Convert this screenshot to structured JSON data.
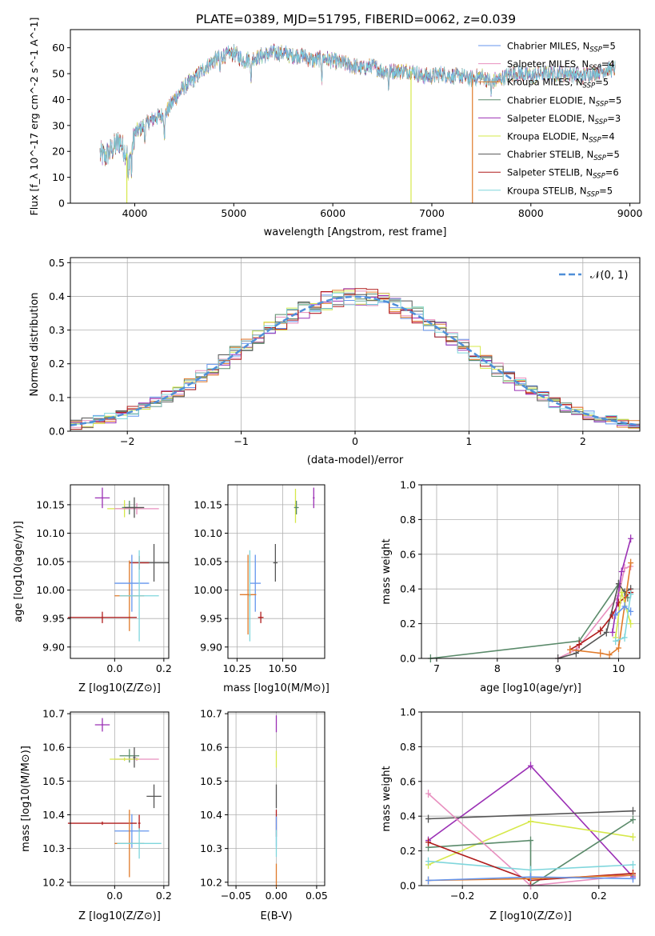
{
  "figure_title": "PLATE=0389, MJD=51795, FIBERID=0062, z=0.039",
  "colors": {
    "Chabrier MILES": "#6495ed",
    "Salpeter MILES": "#e88fbf",
    "Kroupa MILES": "#e07a2a",
    "Chabrier ELODIE": "#5a8a6a",
    "Salpeter ELODIE": "#9b30b5",
    "Kroupa ELODIE": "#d6e84a",
    "Chabrier STELIB": "#555555",
    "Salpeter STELIB": "#b01c1c",
    "Kroupa STELIB": "#7fd6dc",
    "gaussian": "#4f8fd8",
    "grid": "#b0b0b0"
  },
  "chart_data": [
    {
      "id": "spectrum",
      "type": "line",
      "title": "PLATE=0389, MJD=51795, FIBERID=0062, z=0.039",
      "xlabel": "wavelength [Angstrom, rest frame]",
      "ylabel": "Flux [f_λ 10^-17 erg cm^-2 s^-1 A^-1]",
      "xlim": [
        3350,
        9100
      ],
      "ylim": [
        0,
        67
      ],
      "xticks": [
        "4000",
        "5000",
        "6000",
        "7000",
        "8000",
        "9000"
      ],
      "yticks": [
        "0",
        "10",
        "20",
        "30",
        "40",
        "50",
        "60"
      ],
      "grid": false,
      "legend_position": "top-right",
      "legend": [
        {
          "name": "Chabrier MILES",
          "label": "Chabrier MILES, N",
          "sub": "SSP",
          "tail": "=5"
        },
        {
          "name": "Salpeter MILES",
          "label": "Salpeter MILES, N",
          "sub": "SSP",
          "tail": "=4"
        },
        {
          "name": "Kroupa MILES",
          "label": "Kroupa MILES, N",
          "sub": "SSP",
          "tail": "=5"
        },
        {
          "name": "Chabrier ELODIE",
          "label": "Chabrier ELODIE, N",
          "sub": "SSP",
          "tail": "=5"
        },
        {
          "name": "Salpeter ELODIE",
          "label": "Salpeter ELODIE, N",
          "sub": "SSP",
          "tail": "=3"
        },
        {
          "name": "Kroupa ELODIE",
          "label": "Kroupa ELODIE, N",
          "sub": "SSP",
          "tail": "=4"
        },
        {
          "name": "Chabrier STELIB",
          "label": "Chabrier STELIB, N",
          "sub": "SSP",
          "tail": "=5"
        },
        {
          "name": "Salpeter STELIB",
          "label": "Salpeter STELIB, N",
          "sub": "SSP",
          "tail": "=6"
        },
        {
          "name": "Kroupa STELIB",
          "label": "Kroupa STELIB, N",
          "sub": "SSP",
          "tail": "=5"
        }
      ],
      "continuum": {
        "x": [
          3650,
          3700,
          3750,
          3800,
          3850,
          3900,
          3950,
          4000,
          4100,
          4200,
          4300,
          4400,
          4500,
          4600,
          4700,
          4800,
          4900,
          5000,
          5100,
          5200,
          5300,
          5400,
          5500,
          5600,
          5700,
          5800,
          5900,
          6000,
          6100,
          6200,
          6300,
          6400,
          6500,
          6600,
          6700,
          6800,
          6900,
          7000,
          7100,
          7200,
          7300,
          7400,
          7500,
          7600,
          7700,
          7800,
          7900,
          8000,
          8100,
          8200,
          8300,
          8400,
          8500,
          8600,
          8700,
          8850
        ],
        "y": [
          19,
          18,
          20,
          22,
          24,
          20,
          18,
          27,
          30,
          33,
          34,
          40,
          45,
          48,
          52,
          55,
          57,
          58,
          55,
          56,
          57,
          58,
          58,
          57,
          57,
          55,
          56,
          55,
          54,
          53,
          52,
          53,
          51,
          51,
          51,
          51,
          49,
          49,
          50,
          49,
          49,
          48,
          49,
          47,
          48,
          50,
          50,
          49,
          50,
          50,
          50,
          50,
          49,
          50,
          51,
          52
        ]
      },
      "absorption_dips": [
        {
          "x": 3934,
          "depth": 12
        },
        {
          "x": 3968,
          "depth": 10
        },
        {
          "x": 4101,
          "depth": 6
        },
        {
          "x": 4300,
          "depth": 8
        },
        {
          "x": 4861,
          "depth": 6
        },
        {
          "x": 5175,
          "depth": 10
        },
        {
          "x": 5890,
          "depth": 8
        },
        {
          "x": 6563,
          "depth": 6
        },
        {
          "x": 7600,
          "depth": 5
        }
      ],
      "spikes": [
        {
          "series": "Kroupa ELODIE",
          "x": 3920
        },
        {
          "series": "Kroupa ELODIE",
          "x": 6790
        },
        {
          "series": "Kroupa MILES",
          "x": 7410
        }
      ]
    },
    {
      "id": "residuals",
      "type": "bar",
      "xlabel": "(data-model)/error",
      "ylabel": "Normed distribution",
      "xlim": [
        -2.5,
        2.5
      ],
      "ylim": [
        0,
        0.515
      ],
      "xticks": [
        "−2",
        "−1",
        "0",
        "1",
        "2"
      ],
      "yticks": [
        "0.0",
        "0.1",
        "0.2",
        "0.3",
        "0.4",
        "0.5"
      ],
      "grid": true,
      "legend_position": "top-right",
      "gaussian_label": "𝒩(0, 1)",
      "bin_width": 0.1
    },
    {
      "id": "age-vs-Z",
      "type": "scatter",
      "xlabel": "Z [log10(Z/Z⊙)]",
      "ylabel": "age  [log10(age/yr)]",
      "xlim": [
        -0.18,
        0.22
      ],
      "ylim": [
        9.88,
        10.185
      ],
      "xticks": [
        "0.0",
        "0.2"
      ],
      "yticks": [
        "9.90",
        "9.95",
        "10.00",
        "10.05",
        "10.10",
        "10.15"
      ],
      "grid": true,
      "points": [
        {
          "series": "Salpeter ELODIE",
          "x": -0.05,
          "y": 10.162,
          "xerr": 0.03,
          "yerr": 0.018
        },
        {
          "series": "Kroupa ELODIE",
          "x": 0.04,
          "y": 10.143,
          "xerr": 0.07,
          "yerr": 0.015
        },
        {
          "series": "Chabrier ELODIE",
          "x": 0.06,
          "y": 10.145,
          "xerr": 0.03,
          "yerr": 0.012
        },
        {
          "series": "Salpeter MILES",
          "x": 0.09,
          "y": 10.143,
          "xerr": 0.09,
          "yerr": 0.01
        },
        {
          "series": "Chabrier STELIB",
          "x": 0.08,
          "y": 10.145,
          "xerr": 0.04,
          "yerr": 0.018
        },
        {
          "series": "Chabrier STELIB",
          "x": 0.16,
          "y": 10.048,
          "xerr": 0.06,
          "yerr": 0.033
        },
        {
          "series": "Salpeter STELIB",
          "x": 0.1,
          "y": 10.048,
          "xerr": 0.04,
          "yerr": 0.012
        },
        {
          "series": "Kroupa MILES",
          "x": 0.06,
          "y": 9.99,
          "xerr": 0.06,
          "yerr": 0.062
        },
        {
          "series": "Chabrier MILES",
          "x": 0.07,
          "y": 10.012,
          "xerr": 0.07,
          "yerr": 0.05
        },
        {
          "series": "Kroupa STELIB",
          "x": 0.1,
          "y": 9.99,
          "xerr": 0.08,
          "yerr": 0.08
        },
        {
          "series": "Salpeter STELIB",
          "x": -0.05,
          "y": 9.952,
          "xerr": 0.14,
          "yerr": 0.01
        }
      ]
    },
    {
      "id": "age-vs-mass",
      "type": "scatter",
      "xlabel": "mass [log10(M/M⊙)]",
      "ylabel": "",
      "xlim": [
        10.2,
        10.73
      ],
      "ylim": [
        9.88,
        10.185
      ],
      "xticks": [
        "10.25",
        "10.50"
      ],
      "yticks": [
        "9.90",
        "9.95",
        "10.00",
        "10.05",
        "10.10",
        "10.15"
      ],
      "grid": true,
      "points": [
        {
          "series": "Salpeter ELODIE",
          "x": 10.67,
          "y": 10.162,
          "xerr": 0.005,
          "yerr": 0.018
        },
        {
          "series": "Kroupa ELODIE",
          "x": 10.57,
          "y": 10.148,
          "xerr": 0.005,
          "yerr": 0.03
        },
        {
          "series": "Chabrier ELODIE",
          "x": 10.575,
          "y": 10.145,
          "xerr": 0.013,
          "yerr": 0.012
        },
        {
          "series": "Chabrier STELIB",
          "x": 10.46,
          "y": 10.048,
          "xerr": 0.012,
          "yerr": 0.033
        },
        {
          "series": "Chabrier MILES",
          "x": 10.35,
          "y": 10.012,
          "xerr": 0.03,
          "yerr": 0.05
        },
        {
          "series": "Kroupa MILES",
          "x": 10.31,
          "y": 9.992,
          "xerr": 0.045,
          "yerr": 0.07
        },
        {
          "series": "Kroupa STELIB",
          "x": 10.32,
          "y": 9.99,
          "xerr": 0.005,
          "yerr": 0.08
        },
        {
          "series": "Salpeter STELIB",
          "x": 10.38,
          "y": 9.952,
          "xerr": 0.015,
          "yerr": 0.01
        }
      ]
    },
    {
      "id": "mass-weight-vs-age",
      "type": "line",
      "xlabel": "age  [log10(age/yr)]",
      "ylabel": "mass weight",
      "xlim": [
        6.75,
        10.35
      ],
      "ylim": [
        0,
        1.0
      ],
      "xticks": [
        "7",
        "8",
        "9",
        "10"
      ],
      "yticks": [
        "0.0",
        "0.2",
        "0.4",
        "0.6",
        "0.8",
        "1.0"
      ],
      "grid": true,
      "series": [
        {
          "name": "Chabrier ELODIE",
          "x": [
            6.9,
            9.35,
            10.0,
            10.15
          ],
          "y": [
            0.0,
            0.1,
            0.43,
            0.35
          ]
        },
        {
          "name": "Salpeter MILES",
          "x": [
            9.0,
            9.3,
            10.0,
            10.1,
            10.2
          ],
          "y": [
            0.0,
            0.05,
            0.36,
            0.52,
            0.53
          ]
        },
        {
          "name": "Chabrier STELIB",
          "x": [
            9.0,
            9.3,
            9.8,
            10.0,
            10.1,
            10.2
          ],
          "y": [
            0.0,
            0.03,
            0.15,
            0.43,
            0.38,
            0.4
          ]
        },
        {
          "name": "Salpeter STELIB",
          "x": [
            9.2,
            9.35,
            9.7,
            9.9,
            10.0,
            10.2
          ],
          "y": [
            0.05,
            0.08,
            0.16,
            0.25,
            0.32,
            0.38
          ]
        },
        {
          "name": "Salpeter ELODIE",
          "x": [
            9.9,
            10.05,
            10.2
          ],
          "y": [
            0.15,
            0.5,
            0.69
          ]
        },
        {
          "name": "Kroupa MILES",
          "x": [
            9.2,
            9.7,
            9.85,
            10.0,
            10.2
          ],
          "y": [
            0.05,
            0.03,
            0.02,
            0.06,
            0.55
          ]
        },
        {
          "name": "Kroupa ELODIE",
          "x": [
            9.95,
            10.05,
            10.2
          ],
          "y": [
            0.12,
            0.38,
            0.2
          ]
        },
        {
          "name": "Chabrier MILES",
          "x": [
            9.95,
            10.1,
            10.2
          ],
          "y": [
            0.25,
            0.3,
            0.27
          ]
        },
        {
          "name": "Kroupa STELIB",
          "x": [
            9.95,
            10.1,
            10.2
          ],
          "y": [
            0.1,
            0.12,
            0.37
          ]
        }
      ]
    },
    {
      "id": "mass-vs-Z",
      "type": "scatter",
      "xlabel": "Z [log10(Z/Z⊙)]",
      "ylabel": "mass [log10(M/M⊙)]",
      "xlim": [
        -0.18,
        0.22
      ],
      "ylim": [
        10.19,
        10.705
      ],
      "xticks": [
        "0.0",
        "0.2"
      ],
      "yticks": [
        "10.2",
        "10.3",
        "10.4",
        "10.5",
        "10.6",
        "10.7"
      ],
      "grid": true,
      "points": [
        {
          "series": "Salpeter ELODIE",
          "x": -0.05,
          "y": 10.667,
          "xerr": 0.03,
          "yerr": 0.02
        },
        {
          "series": "Chabrier ELODIE",
          "x": 0.06,
          "y": 10.575,
          "xerr": 0.04,
          "yerr": 0.02
        },
        {
          "series": "Salpeter MILES",
          "x": 0.09,
          "y": 10.565,
          "xerr": 0.09,
          "yerr": 0.005
        },
        {
          "series": "Kroupa ELODIE",
          "x": 0.04,
          "y": 10.565,
          "xerr": 0.06,
          "yerr": 0.005
        },
        {
          "series": "Chabrier STELIB",
          "x": 0.08,
          "y": 10.57,
          "xerr": 0.005,
          "yerr": 0.03
        },
        {
          "series": "Chabrier STELIB",
          "x": 0.16,
          "y": 10.455,
          "xerr": 0.03,
          "yerr": 0.035
        },
        {
          "series": "Chabrier MILES",
          "x": 0.07,
          "y": 10.352,
          "xerr": 0.07,
          "yerr": 0.05
        },
        {
          "series": "Salpeter STELIB",
          "x": -0.05,
          "y": 10.375,
          "xerr": 0.14,
          "yerr": 0.005
        },
        {
          "series": "Salpeter STELIB",
          "x": 0.1,
          "y": 10.375,
          "xerr": 0.005,
          "yerr": 0.025
        },
        {
          "series": "Kroupa MILES",
          "x": 0.06,
          "y": 10.315,
          "xerr": 0.06,
          "yerr": 0.1
        },
        {
          "series": "Kroupa STELIB",
          "x": 0.1,
          "y": 10.315,
          "xerr": 0.09,
          "yerr": 0.045
        }
      ]
    },
    {
      "id": "mass-vs-EBV",
      "type": "scatter",
      "xlabel": "E(B-V)",
      "ylabel": "",
      "xlim": [
        -0.06,
        0.06
      ],
      "ylim": [
        10.19,
        10.705
      ],
      "xticks": [
        "−0.05",
        "0.00",
        "0.05"
      ],
      "yticks": [
        "10.2",
        "10.3",
        "10.4",
        "10.5",
        "10.6",
        "10.7"
      ],
      "grid": true,
      "points": [
        {
          "series": "Salpeter ELODIE",
          "x": 0.0,
          "y": 10.67,
          "xerr": 0.0,
          "yerr": 0.025
        },
        {
          "series": "Kroupa ELODIE",
          "x": 0.0,
          "y": 10.565,
          "xerr": 0.0,
          "yerr": 0.025
        },
        {
          "series": "Chabrier STELIB",
          "x": 0.0,
          "y": 10.455,
          "xerr": 0.0,
          "yerr": 0.035
        },
        {
          "series": "Salpeter STELIB",
          "x": 0.0,
          "y": 10.375,
          "xerr": 0.0,
          "yerr": 0.04
        },
        {
          "series": "Chabrier MILES",
          "x": 0.0,
          "y": 10.35,
          "xerr": 0.0,
          "yerr": 0.045
        },
        {
          "series": "Kroupa STELIB",
          "x": 0.0,
          "y": 10.315,
          "xerr": 0.0,
          "yerr": 0.04
        },
        {
          "series": "Kroupa MILES",
          "x": 0.0,
          "y": 10.22,
          "xerr": 0.0,
          "yerr": 0.035
        }
      ]
    },
    {
      "id": "mass-weight-vs-Z",
      "type": "line",
      "xlabel": "Z [log10(Z/Z⊙)]",
      "ylabel": "mass weight",
      "xlim": [
        -0.32,
        0.32
      ],
      "ylim": [
        0,
        1.0
      ],
      "xticks": [
        "−0.2",
        "0.0",
        "0.2"
      ],
      "yticks": [
        "0.0",
        "0.2",
        "0.4",
        "0.6",
        "0.8",
        "1.0"
      ],
      "grid": true,
      "series": [
        {
          "name": "Salpeter ELODIE",
          "x": [
            -0.3,
            0.0,
            0.3
          ],
          "y": [
            0.26,
            0.69,
            0.05
          ]
        },
        {
          "name": "Chabrier STELIB",
          "x": [
            -0.3,
            0.3
          ],
          "y": [
            0.385,
            0.43
          ]
        },
        {
          "name": "Kroupa ELODIE",
          "x": [
            -0.3,
            0.0,
            0.3
          ],
          "y": [
            0.12,
            0.37,
            0.28
          ]
        },
        {
          "name": "Chabrier ELODIE",
          "x": [
            -0.3,
            0.0,
            0.0,
            0.3
          ],
          "y": [
            0.22,
            0.26,
            0.0,
            0.38
          ]
        },
        {
          "name": "Salpeter MILES",
          "x": [
            -0.3,
            0.0,
            0.3
          ],
          "y": [
            0.53,
            0.0,
            0.06
          ]
        },
        {
          "name": "Kroupa STELIB",
          "x": [
            -0.3,
            0.0,
            0.3
          ],
          "y": [
            0.14,
            0.09,
            0.12
          ]
        },
        {
          "name": "Salpeter STELIB",
          "x": [
            -0.3,
            0.0,
            0.3
          ],
          "y": [
            0.25,
            0.03,
            0.07
          ]
        },
        {
          "name": "Kroupa MILES",
          "x": [
            -0.3,
            0.0,
            0.3
          ],
          "y": [
            0.03,
            0.04,
            0.06
          ]
        },
        {
          "name": "Chabrier MILES",
          "x": [
            -0.3,
            0.0,
            0.3
          ],
          "y": [
            0.03,
            0.05,
            0.04
          ]
        }
      ]
    }
  ]
}
